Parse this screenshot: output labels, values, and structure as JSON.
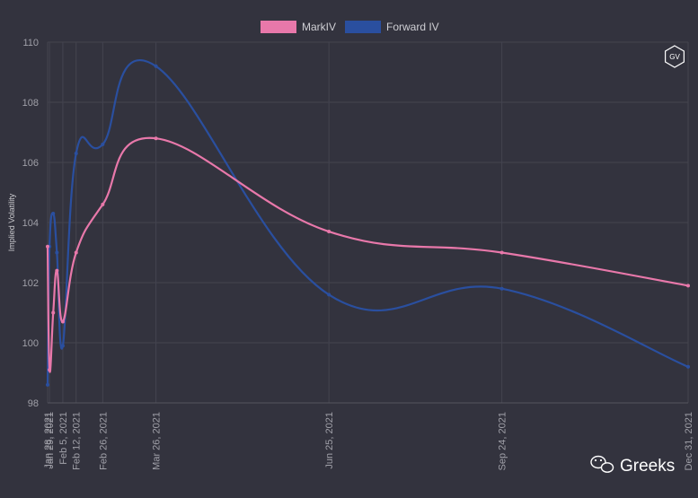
{
  "chart_data": {
    "type": "line",
    "xlabel": "",
    "ylabel": "Implied Volatility",
    "ylim": [
      98,
      110
    ],
    "y_ticks": [
      98,
      100,
      102,
      104,
      106,
      108,
      110
    ],
    "x_tick_labels": [
      "Jan 28, 2021",
      "Jan 29, 2021",
      "Feb 5, 2021",
      "Feb 12, 2021",
      "Feb 26, 2021",
      "Mar 26, 2021",
      "Jun 25, 2021",
      "Sep 24, 2021",
      "Dec 31, 2021"
    ],
    "x": [
      "2021-01-28",
      "2021-01-29",
      "2021-01-30",
      "2021-01-31",
      "2021-02-05",
      "2021-02-12",
      "2021-02-26",
      "2021-03-26",
      "2021-06-25",
      "2021-09-24",
      "2021-12-31"
    ],
    "series": [
      {
        "name": "MarkIV",
        "color": "#e878aa",
        "values": [
          103.2,
          99.1,
          101.0,
          102.4,
          100.7,
          103.0,
          104.6,
          106.8,
          103.7,
          103.0,
          101.9
        ]
      },
      {
        "name": "Forward IV",
        "color": "#2a4f9f",
        "values": [
          98.6,
          103.2,
          104.3,
          103.0,
          99.9,
          106.3,
          106.6,
          109.2,
          101.6,
          101.8,
          99.2
        ]
      }
    ],
    "legend_position": "top",
    "grid": true
  },
  "watermark": {
    "logo_text": "GV",
    "brand": "Greeks"
  }
}
